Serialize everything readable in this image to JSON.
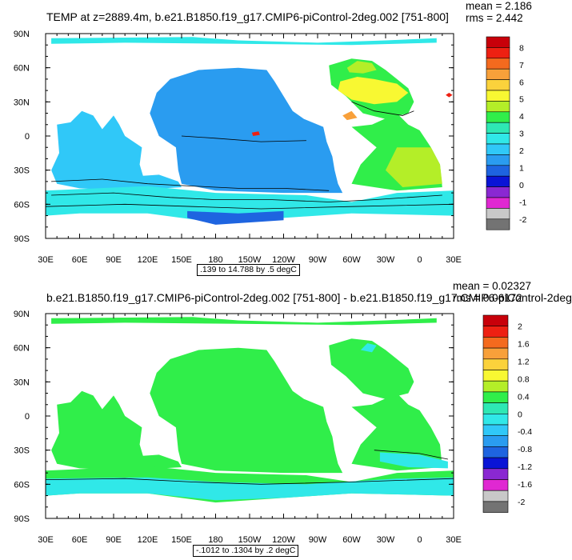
{
  "panels": [
    {
      "title": "TEMP at z=2889.4m, b.e21.B1850.f19_g17.CMIP6-piControl-2deg.002 [751-800]",
      "stats": {
        "mean": "mean = 2.186",
        "rms": "rms = 2.442"
      },
      "range_label": ".139 to 14.788 by .5 degC",
      "colorbar": {
        "labels": [
          "8",
          "7",
          "6",
          "5",
          "4",
          "3",
          "2",
          "1",
          "0",
          "-1",
          "-2"
        ],
        "colors": [
          "#c8000a",
          "#ee2012",
          "#f46a1e",
          "#f8a03a",
          "#fbd23c",
          "#f8f832",
          "#b4ee28",
          "#30ee4a",
          "#2ee8b4",
          "#30e8e8",
          "#30c8f8",
          "#2a9cf0",
          "#1e64e0",
          "#0a14d6",
          "#8a28d2",
          "#e028d2",
          "#c8c8c8",
          "#737373"
        ]
      }
    },
    {
      "title": "b.e21.B1850.f19_g17.CMIP6-piControl-2deg.002 [751-800] - b.e21.B1850.f19_g17.CMIP6-piControl-2deg",
      "stats": {
        "mean": "mean = 0.02327",
        "rms": "rms = 0.06172"
      },
      "range_label": "-.1012 to .1304 by .2 degC",
      "colorbar": {
        "labels": [
          "2",
          "1.6",
          "1.2",
          "0.8",
          "0.4",
          "0",
          "-0.4",
          "-0.8",
          "-1.2",
          "-1.6",
          "-2"
        ],
        "colors": [
          "#c8000a",
          "#ee2012",
          "#f46a1e",
          "#f8a03a",
          "#fbd23c",
          "#f8f832",
          "#b4ee28",
          "#30ee4a",
          "#2ee8b4",
          "#30e8e8",
          "#30c8f8",
          "#2a9cf0",
          "#1e64e0",
          "#0a14d6",
          "#8a28d2",
          "#e028d2",
          "#c8c8c8",
          "#737373"
        ]
      }
    }
  ],
  "axes": {
    "lon_labels": [
      "30E",
      "60E",
      "90E",
      "120E",
      "150E",
      "180",
      "150W",
      "120W",
      "90W",
      "60W",
      "30W",
      "0",
      "30E"
    ],
    "lat_labels": [
      "90N",
      "60N",
      "30N",
      "0",
      "30S",
      "60S",
      "90S"
    ]
  },
  "map_colors": {
    "panel1": {
      "pacific": "#2a9cf0",
      "indian": "#30c8f8",
      "southern": "#30e8e8",
      "atlantic_n": "#f8f832",
      "atlantic_s": "#30ee4a",
      "atlantic_mid": "#b4ee28",
      "arctic": "#30e8e8",
      "antarctic_deep": "#1e64e0",
      "red_spot": "#ee2012",
      "orange_spot": "#f8a03a"
    },
    "panel2": {
      "ocean": "#30ee4a",
      "southern": "#30e8e8",
      "arctic": "#30ee4a",
      "labrador": "#30e8e8"
    }
  }
}
